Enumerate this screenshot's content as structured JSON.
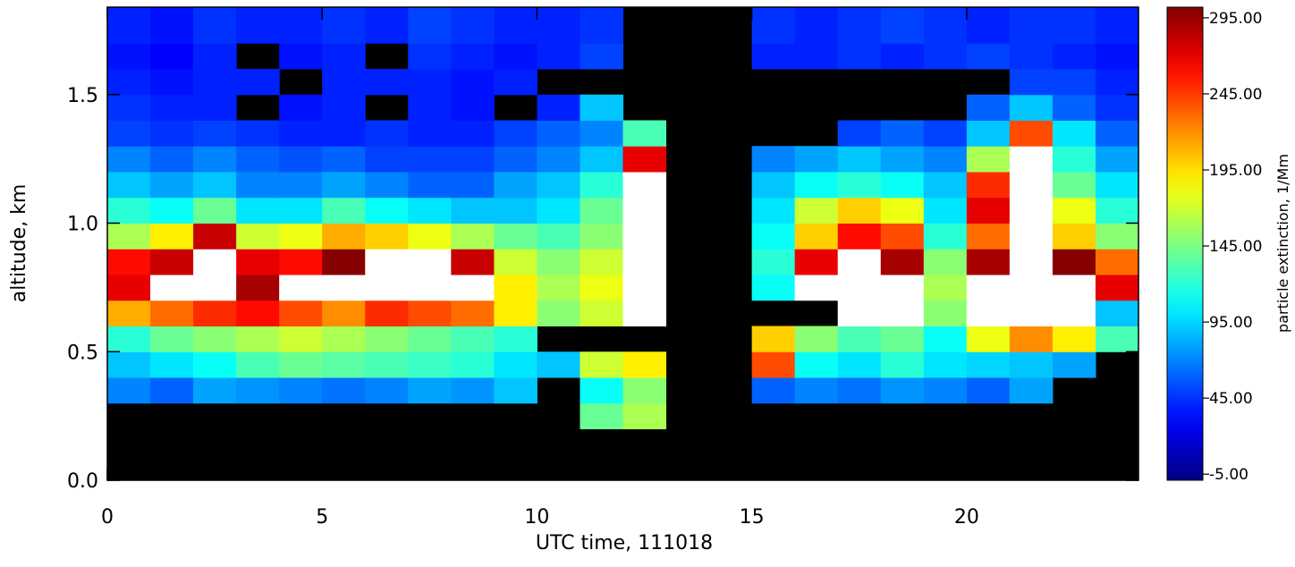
{
  "chart_data": {
    "type": "heatmap",
    "x_label": "UTC time, 111018",
    "y_label": "altitude, km",
    "colorbar_label": "particle extinction, 1/Mm",
    "x_edges": [
      0,
      1,
      2,
      3,
      4,
      5,
      6,
      7,
      8,
      9,
      10,
      11,
      12,
      13,
      14,
      15,
      16,
      17,
      18,
      19,
      20,
      21,
      22,
      23,
      24
    ],
    "y_edges": [
      0,
      0.1,
      0.2,
      0.3,
      0.4,
      0.5,
      0.6,
      0.7,
      0.8,
      0.9,
      1.0,
      1.1,
      1.2,
      1.3,
      1.4,
      1.5,
      1.6,
      1.7,
      1.84
    ],
    "z": [
      [
        null,
        null,
        null,
        null,
        null,
        null,
        null,
        null,
        null,
        null,
        null,
        null,
        null,
        null,
        null,
        null,
        null,
        null,
        null,
        null,
        null,
        null,
        null,
        null
      ],
      [
        null,
        null,
        null,
        null,
        null,
        null,
        null,
        null,
        null,
        null,
        null,
        null,
        null,
        null,
        null,
        null,
        null,
        null,
        null,
        null,
        null,
        null,
        null,
        null
      ],
      [
        null,
        null,
        null,
        null,
        null,
        null,
        null,
        null,
        null,
        null,
        null,
        140,
        160,
        null,
        null,
        null,
        null,
        null,
        null,
        null,
        null,
        null,
        null,
        null
      ],
      [
        70,
        60,
        80,
        75,
        70,
        65,
        70,
        80,
        75,
        90,
        null,
        110,
        150,
        null,
        null,
        60,
        70,
        65,
        75,
        70,
        60,
        80,
        null,
        null
      ],
      [
        90,
        100,
        110,
        130,
        140,
        135,
        130,
        125,
        120,
        100,
        90,
        170,
        190,
        null,
        null,
        240,
        110,
        100,
        120,
        100,
        95,
        90,
        80,
        null
      ],
      [
        120,
        140,
        150,
        160,
        170,
        160,
        150,
        140,
        130,
        120,
        null,
        null,
        null,
        null,
        null,
        200,
        150,
        130,
        140,
        110,
        180,
        220,
        190,
        130
      ],
      [
        210,
        230,
        250,
        260,
        240,
        220,
        250,
        240,
        230,
        190,
        150,
        170,
        320,
        null,
        null,
        null,
        null,
        320,
        320,
        150,
        320,
        320,
        320,
        90
      ],
      [
        270,
        320,
        320,
        290,
        320,
        320,
        320,
        320,
        320,
        190,
        160,
        180,
        320,
        null,
        null,
        110,
        320,
        320,
        320,
        160,
        320,
        320,
        320,
        270
      ],
      [
        260,
        280,
        320,
        270,
        260,
        300,
        320,
        320,
        280,
        170,
        150,
        170,
        320,
        null,
        null,
        120,
        270,
        320,
        290,
        150,
        290,
        320,
        300,
        230
      ],
      [
        160,
        190,
        280,
        170,
        180,
        210,
        200,
        180,
        160,
        140,
        130,
        150,
        320,
        null,
        null,
        110,
        200,
        260,
        240,
        120,
        230,
        320,
        200,
        150
      ],
      [
        120,
        110,
        140,
        100,
        100,
        130,
        110,
        100,
        90,
        90,
        100,
        140,
        320,
        null,
        null,
        100,
        170,
        200,
        180,
        100,
        270,
        320,
        180,
        120
      ],
      [
        90,
        80,
        90,
        70,
        70,
        80,
        70,
        60,
        60,
        80,
        90,
        120,
        320,
        null,
        null,
        90,
        110,
        120,
        110,
        90,
        250,
        310,
        140,
        100
      ],
      [
        70,
        60,
        70,
        60,
        55,
        60,
        50,
        50,
        50,
        60,
        70,
        90,
        270,
        null,
        null,
        70,
        80,
        90,
        80,
        70,
        160,
        320,
        120,
        80
      ],
      [
        50,
        45,
        50,
        45,
        40,
        40,
        45,
        40,
        40,
        50,
        60,
        70,
        130,
        null,
        null,
        null,
        null,
        50,
        60,
        50,
        90,
        240,
        100,
        60
      ],
      [
        45,
        40,
        40,
        null,
        35,
        40,
        null,
        40,
        35,
        null,
        40,
        90,
        null,
        null,
        null,
        null,
        null,
        null,
        null,
        null,
        60,
        90,
        60,
        45
      ],
      [
        40,
        35,
        40,
        40,
        null,
        40,
        40,
        40,
        35,
        40,
        null,
        null,
        null,
        null,
        null,
        null,
        null,
        null,
        null,
        null,
        null,
        50,
        50,
        40
      ],
      [
        35,
        30,
        40,
        null,
        35,
        40,
        null,
        45,
        40,
        35,
        40,
        50,
        null,
        null,
        null,
        40,
        40,
        45,
        40,
        45,
        50,
        45,
        40,
        35
      ],
      [
        40,
        35,
        45,
        40,
        40,
        45,
        40,
        50,
        45,
        40,
        40,
        45,
        null,
        null,
        null,
        45,
        40,
        45,
        50,
        45,
        40,
        45,
        45,
        40
      ]
    ],
    "xlim": [
      0,
      24
    ],
    "ylim": [
      0,
      1.84
    ],
    "xticks": [
      0,
      5,
      10,
      15,
      20
    ],
    "yticks": [
      {
        "value": 0,
        "label": "0.0"
      },
      {
        "value": 0.5,
        "label": "0.5"
      },
      {
        "value": 1.0,
        "label": "1.0"
      },
      {
        "value": 1.5,
        "label": "1.5"
      }
    ],
    "clim": [
      -9,
      302
    ],
    "cticks": [
      {
        "value": -5,
        "label": "-5.00"
      },
      {
        "value": 45,
        "label": "45.00"
      },
      {
        "value": 95,
        "label": "95.00"
      },
      {
        "value": 145,
        "label": "145.00"
      },
      {
        "value": 195,
        "label": "195.00"
      },
      {
        "value": 245,
        "label": "245.00"
      },
      {
        "value": 295,
        "label": "295.00"
      }
    ],
    "colormap": "jet",
    "over_color": "#ffffff",
    "missing_color": "#000000"
  }
}
